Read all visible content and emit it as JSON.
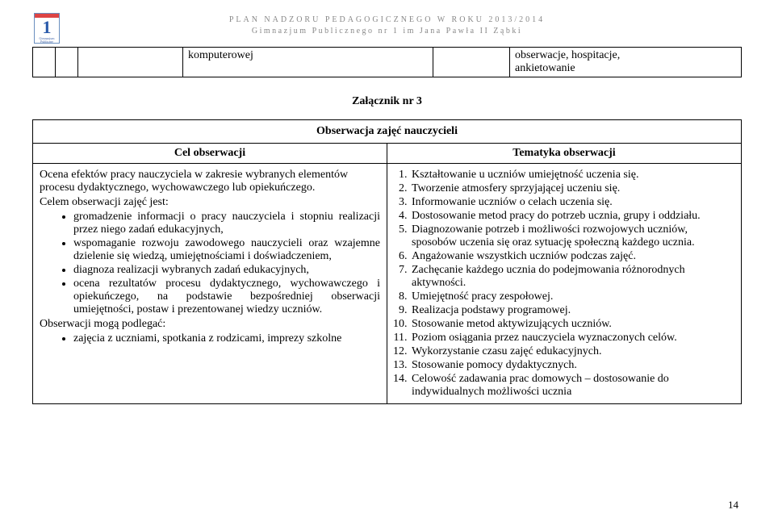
{
  "header": {
    "line1": "PLAN NADZORU PEDAGOGICZNEGO W ROKU 2013/2014",
    "line2": "Gimnazjum Publicznego nr 1 im Jana Pawła II Ząbki"
  },
  "logo": {
    "number": "1",
    "caption": "Gimnazjum Publiczne"
  },
  "topRow": {
    "c4": "komputerowej",
    "c6a": "obserwacje, hospitacje,",
    "c6b": "ankietowanie"
  },
  "attachment_title": "Załącznik nr 3",
  "table": {
    "title": "Obserwacja zajęć nauczycieli",
    "left_head": "Cel obserwacji",
    "right_head": "Tematyka obserwacji"
  },
  "left": {
    "p1": "Ocena efektów pracy nauczyciela w zakresie wybranych elementów procesu dydaktycznego, wychowawczego lub opiekuńczego.",
    "p2": "Celem obserwacji zajęć jest:",
    "b1": "gromadzenie informacji o pracy nauczyciela i stopniu realizacji przez niego zadań edukacyjnych,",
    "b2": "wspomaganie rozwoju zawodowego nauczycieli oraz wzajemne dzielenie się wiedzą, umiejętnościami i doświadczeniem,",
    "b3": "diagnoza realizacji wybranych zadań edukacyjnych,",
    "b4": "ocena rezultatów procesu dydaktycznego, wychowawczego i opiekuńczego, na podstawie bezpośredniej obserwacji umiejętności, postaw i prezentowanej wiedzy uczniów.",
    "p3": "Obserwacji mogą podlegać:",
    "b5": "zajęcia z uczniami, spotkania z rodzicami, imprezy szkolne"
  },
  "right": {
    "i1": "Kształtowanie u uczniów umiejętność uczenia się.",
    "i2": "Tworzenie atmosfery sprzyjającej uczeniu się.",
    "i3": "Informowanie uczniów o celach uczenia się.",
    "i4": "Dostosowanie metod pracy do potrzeb ucznia, grupy i oddziału.",
    "i5": "Diagnozowanie potrzeb i możliwości rozwojowych uczniów, sposobów uczenia się oraz sytuację społeczną każdego ucznia.",
    "i6": "Angażowanie wszystkich uczniów podczas zajęć.",
    "i7": "Zachęcanie każdego ucznia do podejmowania różnorodnych aktywności.",
    "i8": "Umiejętność pracy zespołowej.",
    "i9": "Realizacja podstawy programowej.",
    "i10": "Stosowanie metod aktywizujących uczniów.",
    "i11": "Poziom osiągania przez nauczyciela wyznaczonych celów.",
    "i12": "Wykorzystanie czasu zajęć edukacyjnych.",
    "i13": "Stosowanie pomocy dydaktycznych.",
    "i14": "Celowość zadawania prac domowych – dostosowanie do indywidualnych możliwości ucznia"
  },
  "page_number": "14"
}
